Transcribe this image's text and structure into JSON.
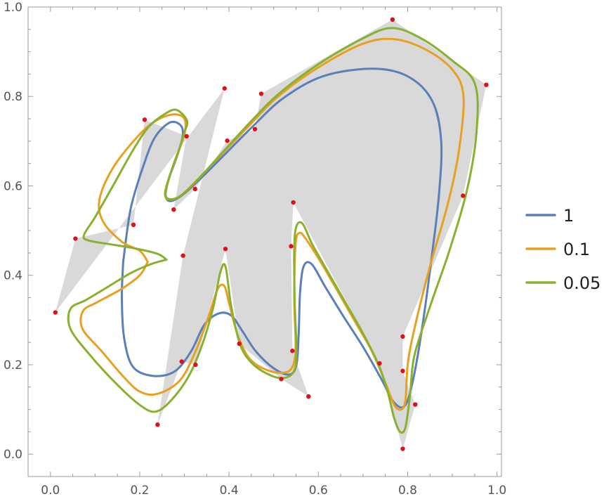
{
  "chart_data": {
    "type": "line",
    "title": "",
    "xlabel": "",
    "ylabel": "",
    "xlim": [
      -0.05,
      1.01
    ],
    "ylim": [
      -0.05,
      1.0
    ],
    "x_ticks": [
      "0.0",
      "0.2",
      "0.4",
      "0.6",
      "0.8",
      "1.0"
    ],
    "y_ticks": [
      "0.0",
      "0.2",
      "0.4",
      "0.6",
      "0.8",
      "1.0"
    ],
    "grid": false,
    "legend_position": "right",
    "region_color": "#d9d9d9",
    "point_color": "#e0101a",
    "control_points": [
      [
        0.011,
        0.317
      ],
      [
        0.056,
        0.482
      ],
      [
        0.186,
        0.513
      ],
      [
        0.211,
        0.748
      ],
      [
        0.305,
        0.711
      ],
      [
        0.276,
        0.547
      ],
      [
        0.324,
        0.593
      ],
      [
        0.396,
        0.701
      ],
      [
        0.458,
        0.727
      ],
      [
        0.472,
        0.806
      ],
      [
        0.766,
        0.972
      ],
      [
        0.976,
        0.826
      ],
      [
        0.924,
        0.578
      ],
      [
        0.789,
        0.263
      ],
      [
        0.789,
        0.186
      ],
      [
        0.817,
        0.111
      ],
      [
        0.789,
        0.012
      ],
      [
        0.737,
        0.203
      ],
      [
        0.544,
        0.563
      ],
      [
        0.539,
        0.465
      ],
      [
        0.542,
        0.231
      ],
      [
        0.578,
        0.129
      ],
      [
        0.517,
        0.168
      ],
      [
        0.423,
        0.247
      ],
      [
        0.392,
        0.459
      ],
      [
        0.325,
        0.2
      ],
      [
        0.294,
        0.207
      ],
      [
        0.24,
        0.066
      ],
      [
        0.297,
        0.444
      ],
      [
        0.39,
        0.818
      ]
    ],
    "series": [
      {
        "name": "1",
        "color": "#5b7fb9",
        "points": [
          [
            0.163,
            0.43
          ],
          [
            0.18,
            0.55
          ],
          [
            0.21,
            0.65
          ],
          [
            0.235,
            0.71
          ],
          [
            0.268,
            0.742
          ],
          [
            0.292,
            0.735
          ],
          [
            0.296,
            0.71
          ],
          [
            0.283,
            0.665
          ],
          [
            0.265,
            0.615
          ],
          [
            0.258,
            0.578
          ],
          [
            0.27,
            0.566
          ],
          [
            0.3,
            0.583
          ],
          [
            0.345,
            0.625
          ],
          [
            0.395,
            0.675
          ],
          [
            0.45,
            0.73
          ],
          [
            0.52,
            0.795
          ],
          [
            0.61,
            0.845
          ],
          [
            0.72,
            0.862
          ],
          [
            0.8,
            0.845
          ],
          [
            0.855,
            0.79
          ],
          [
            0.875,
            0.7
          ],
          [
            0.87,
            0.58
          ],
          [
            0.855,
            0.45
          ],
          [
            0.835,
            0.3
          ],
          [
            0.815,
            0.18
          ],
          [
            0.795,
            0.11
          ],
          [
            0.77,
            0.115
          ],
          [
            0.74,
            0.17
          ],
          [
            0.7,
            0.24
          ],
          [
            0.655,
            0.31
          ],
          [
            0.615,
            0.375
          ],
          [
            0.585,
            0.425
          ],
          [
            0.567,
            0.42
          ],
          [
            0.559,
            0.36
          ],
          [
            0.556,
            0.27
          ],
          [
            0.551,
            0.2
          ],
          [
            0.535,
            0.178
          ],
          [
            0.5,
            0.192
          ],
          [
            0.46,
            0.23
          ],
          [
            0.43,
            0.275
          ],
          [
            0.405,
            0.31
          ],
          [
            0.378,
            0.315
          ],
          [
            0.345,
            0.29
          ],
          [
            0.315,
            0.23
          ],
          [
            0.278,
            0.185
          ],
          [
            0.23,
            0.175
          ],
          [
            0.185,
            0.195
          ],
          [
            0.165,
            0.26
          ],
          [
            0.16,
            0.35
          ],
          [
            0.163,
            0.43
          ]
        ]
      },
      {
        "name": "0.1",
        "color": "#e8a020",
        "points": [
          [
            0.218,
            0.43
          ],
          [
            0.2,
            0.455
          ],
          [
            0.16,
            0.475
          ],
          [
            0.118,
            0.52
          ],
          [
            0.11,
            0.57
          ],
          [
            0.14,
            0.64
          ],
          [
            0.195,
            0.71
          ],
          [
            0.235,
            0.745
          ],
          [
            0.275,
            0.76
          ],
          [
            0.3,
            0.75
          ],
          [
            0.3,
            0.715
          ],
          [
            0.28,
            0.66
          ],
          [
            0.26,
            0.6
          ],
          [
            0.258,
            0.575
          ],
          [
            0.275,
            0.57
          ],
          [
            0.3,
            0.585
          ],
          [
            0.35,
            0.635
          ],
          [
            0.4,
            0.688
          ],
          [
            0.45,
            0.74
          ],
          [
            0.51,
            0.8
          ],
          [
            0.6,
            0.865
          ],
          [
            0.7,
            0.918
          ],
          [
            0.77,
            0.928
          ],
          [
            0.84,
            0.905
          ],
          [
            0.9,
            0.86
          ],
          [
            0.925,
            0.8
          ],
          [
            0.915,
            0.68
          ],
          [
            0.89,
            0.56
          ],
          [
            0.85,
            0.42
          ],
          [
            0.815,
            0.28
          ],
          [
            0.8,
            0.2
          ],
          [
            0.795,
            0.12
          ],
          [
            0.785,
            0.1
          ],
          [
            0.77,
            0.11
          ],
          [
            0.75,
            0.16
          ],
          [
            0.72,
            0.23
          ],
          [
            0.68,
            0.3
          ],
          [
            0.64,
            0.37
          ],
          [
            0.605,
            0.43
          ],
          [
            0.573,
            0.48
          ],
          [
            0.558,
            0.495
          ],
          [
            0.549,
            0.47
          ],
          [
            0.546,
            0.35
          ],
          [
            0.549,
            0.24
          ],
          [
            0.542,
            0.195
          ],
          [
            0.52,
            0.182
          ],
          [
            0.48,
            0.19
          ],
          [
            0.445,
            0.215
          ],
          [
            0.42,
            0.265
          ],
          [
            0.402,
            0.33
          ],
          [
            0.39,
            0.375
          ],
          [
            0.375,
            0.37
          ],
          [
            0.355,
            0.31
          ],
          [
            0.325,
            0.23
          ],
          [
            0.29,
            0.165
          ],
          [
            0.24,
            0.135
          ],
          [
            0.2,
            0.14
          ],
          [
            0.162,
            0.175
          ],
          [
            0.115,
            0.23
          ],
          [
            0.072,
            0.28
          ],
          [
            0.073,
            0.32
          ],
          [
            0.105,
            0.34
          ],
          [
            0.16,
            0.37
          ],
          [
            0.2,
            0.4
          ],
          [
            0.218,
            0.43
          ]
        ]
      },
      {
        "name": "0.05",
        "color": "#8ab030",
        "points": [
          [
            0.26,
            0.435
          ],
          [
            0.24,
            0.448
          ],
          [
            0.19,
            0.46
          ],
          [
            0.13,
            0.47
          ],
          [
            0.085,
            0.478
          ],
          [
            0.075,
            0.49
          ],
          [
            0.1,
            0.53
          ],
          [
            0.14,
            0.6
          ],
          [
            0.185,
            0.68
          ],
          [
            0.22,
            0.732
          ],
          [
            0.255,
            0.76
          ],
          [
            0.282,
            0.77
          ],
          [
            0.306,
            0.745
          ],
          [
            0.298,
            0.715
          ],
          [
            0.288,
            0.68
          ],
          [
            0.268,
            0.625
          ],
          [
            0.257,
            0.583
          ],
          [
            0.268,
            0.57
          ],
          [
            0.295,
            0.58
          ],
          [
            0.34,
            0.625
          ],
          [
            0.39,
            0.68
          ],
          [
            0.45,
            0.745
          ],
          [
            0.51,
            0.805
          ],
          [
            0.6,
            0.872
          ],
          [
            0.7,
            0.93
          ],
          [
            0.765,
            0.953
          ],
          [
            0.83,
            0.93
          ],
          [
            0.9,
            0.88
          ],
          [
            0.95,
            0.83
          ],
          [
            0.955,
            0.73
          ],
          [
            0.935,
            0.6
          ],
          [
            0.895,
            0.46
          ],
          [
            0.85,
            0.33
          ],
          [
            0.815,
            0.22
          ],
          [
            0.805,
            0.13
          ],
          [
            0.795,
            0.06
          ],
          [
            0.783,
            0.05
          ],
          [
            0.77,
            0.08
          ],
          [
            0.755,
            0.14
          ],
          [
            0.735,
            0.2
          ],
          [
            0.7,
            0.27
          ],
          [
            0.66,
            0.34
          ],
          [
            0.62,
            0.41
          ],
          [
            0.586,
            0.47
          ],
          [
            0.565,
            0.515
          ],
          [
            0.551,
            0.51
          ],
          [
            0.546,
            0.46
          ],
          [
            0.547,
            0.34
          ],
          [
            0.551,
            0.23
          ],
          [
            0.545,
            0.185
          ],
          [
            0.52,
            0.17
          ],
          [
            0.485,
            0.18
          ],
          [
            0.45,
            0.205
          ],
          [
            0.425,
            0.245
          ],
          [
            0.405,
            0.33
          ],
          [
            0.392,
            0.42
          ],
          [
            0.38,
            0.405
          ],
          [
            0.365,
            0.33
          ],
          [
            0.34,
            0.245
          ],
          [
            0.31,
            0.175
          ],
          [
            0.27,
            0.12
          ],
          [
            0.235,
            0.095
          ],
          [
            0.2,
            0.11
          ],
          [
            0.15,
            0.155
          ],
          [
            0.09,
            0.22
          ],
          [
            0.045,
            0.28
          ],
          [
            0.045,
            0.325
          ],
          [
            0.08,
            0.345
          ],
          [
            0.13,
            0.375
          ],
          [
            0.18,
            0.405
          ],
          [
            0.225,
            0.425
          ],
          [
            0.26,
            0.435
          ]
        ]
      }
    ]
  }
}
